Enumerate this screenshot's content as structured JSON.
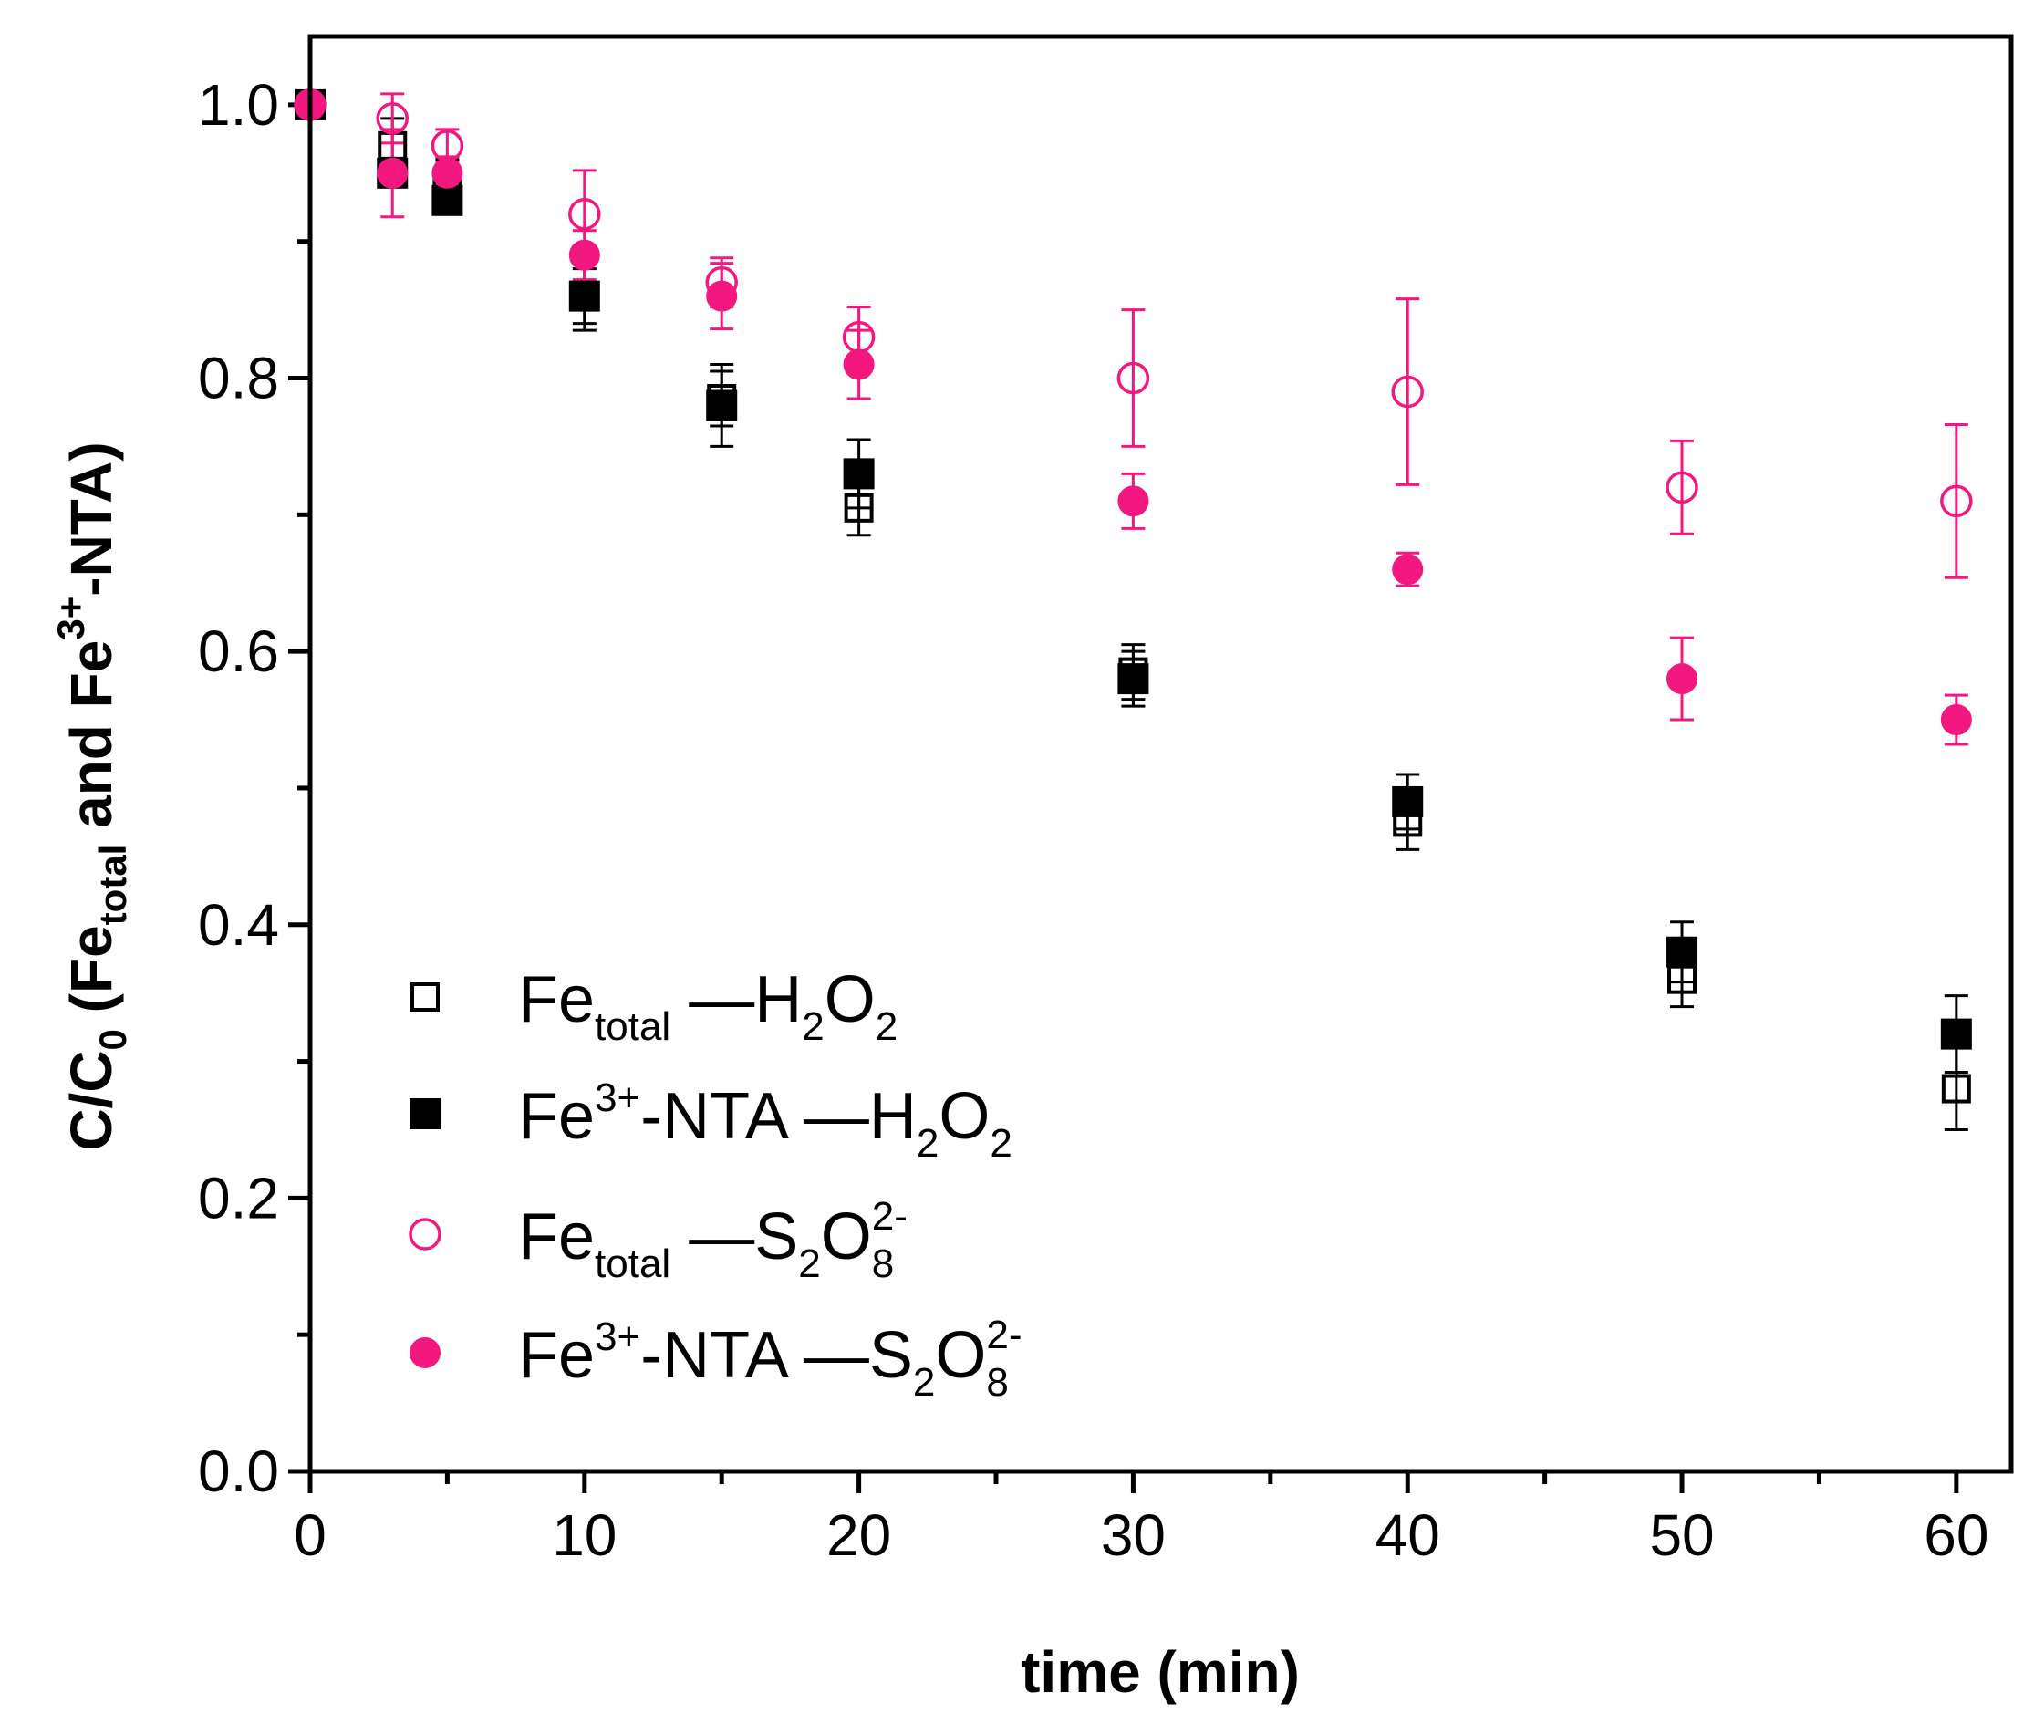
{
  "chart_data": {
    "type": "scatter",
    "title": "",
    "xlabel": "time (min)",
    "ylabel": {
      "prefix": "C/C",
      "sub0": "0",
      "mid1": " (Fe",
      "sub1": "total",
      "mid2": " and Fe",
      "sup1": "3+",
      "end": "-NTA)"
    },
    "xlim": [
      0,
      62
    ],
    "ylim": [
      0,
      1.05
    ],
    "x_ticks": [
      0,
      10,
      20,
      30,
      40,
      50,
      60
    ],
    "x_tick_labels": [
      "0",
      "10",
      "20",
      "30",
      "40",
      "50",
      "60"
    ],
    "y_ticks": [
      0.0,
      0.2,
      0.4,
      0.6,
      0.8,
      1.0
    ],
    "y_tick_labels": [
      "0.0",
      "0.2",
      "0.4",
      "0.6",
      "0.8",
      "1.0"
    ],
    "legend_position": "bottom-left",
    "series": [
      {
        "name": "Fe_total —H2O2",
        "marker": "square-open",
        "color": "#000000",
        "legend": {
          "base": "Fe",
          "sub": "total",
          "sep": " —H",
          "f1": "2",
          "o": "O",
          "f2": "2",
          "sup": ""
        },
        "x": [
          0,
          3,
          5,
          10,
          15,
          20,
          30,
          40,
          50,
          60
        ],
        "y": [
          1.0,
          0.97,
          0.94,
          0.86,
          0.785,
          0.705,
          0.585,
          0.475,
          0.36,
          0.28
        ],
        "err": [
          0,
          0.02,
          0.02,
          0.02,
          0.02,
          0.02,
          0.02,
          0.02,
          0.02,
          0.03
        ]
      },
      {
        "name": "Fe3+-NTA —H2O2",
        "marker": "square-filled",
        "color": "#000000",
        "legend": {
          "base": "Fe",
          "sup3": "3+",
          "rest": "-NTA —H",
          "f1": "2",
          "o": "O",
          "f2": "2",
          "sup": ""
        },
        "x": [
          0,
          3,
          5,
          10,
          15,
          20,
          30,
          40,
          50,
          60
        ],
        "y": [
          1.0,
          0.95,
          0.93,
          0.86,
          0.78,
          0.73,
          0.58,
          0.49,
          0.38,
          0.32
        ],
        "err": [
          0,
          0.01,
          0.01,
          0.025,
          0.03,
          0.025,
          0.02,
          0.02,
          0.022,
          0.028
        ]
      },
      {
        "name": "Fe_total —S2O8 2-",
        "marker": "circle-open",
        "color": "#f2187f",
        "legend": {
          "base": "Fe",
          "sub": "total",
          "sep": " —S",
          "f1": "2",
          "o": "O",
          "f2": "8",
          "sup": "2-"
        },
        "x": [
          0,
          3,
          5,
          10,
          15,
          20,
          30,
          40,
          50,
          60
        ],
        "y": [
          1.0,
          0.99,
          0.97,
          0.92,
          0.87,
          0.83,
          0.8,
          0.79,
          0.72,
          0.71
        ],
        "err": [
          0,
          0.018,
          0.012,
          0.032,
          0.018,
          0.022,
          0.05,
          0.068,
          0.034,
          0.056
        ]
      },
      {
        "name": "Fe3+-NTA —S2O8 2-",
        "marker": "circle-filled",
        "color": "#f2187f",
        "legend": {
          "base": "Fe",
          "sup3": "3+",
          "rest": "-NTA —S",
          "f1": "2",
          "o": "O",
          "f2": "8",
          "sup": "2-"
        },
        "x": [
          0,
          3,
          5,
          10,
          15,
          20,
          30,
          40,
          50,
          60
        ],
        "y": [
          1.0,
          0.95,
          0.95,
          0.89,
          0.86,
          0.81,
          0.71,
          0.66,
          0.58,
          0.55
        ],
        "err": [
          0,
          0.032,
          0.012,
          0.018,
          0.024,
          0.025,
          0.02,
          0.012,
          0.03,
          0.018
        ]
      }
    ]
  }
}
